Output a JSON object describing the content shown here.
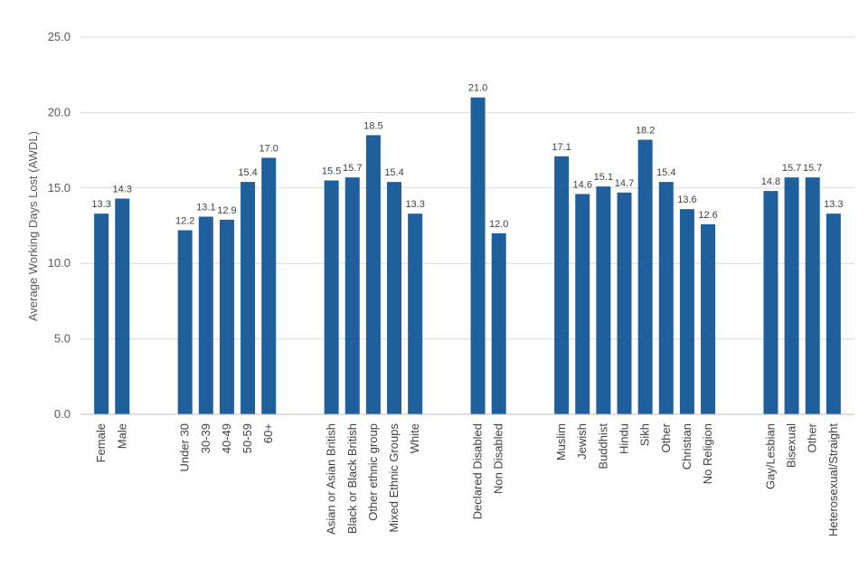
{
  "chart_data": {
    "type": "bar",
    "title": "",
    "xlabel": "",
    "ylabel": "Average Working Days Lost (AWDL)",
    "ylim": [
      0,
      25
    ],
    "yticks": [
      "0.0",
      "5.0",
      "10.0",
      "15.0",
      "20.0",
      "25.0"
    ],
    "grid": true,
    "bar_color": "#1f5f9b",
    "groups": [
      {
        "categories": [
          "Female",
          "Male"
        ],
        "values": [
          13.3,
          14.3
        ],
        "labels": [
          "13.3",
          "14.3"
        ]
      },
      {
        "categories": [
          "Under 30",
          "30-39",
          "40-49",
          "50-59",
          "60+"
        ],
        "values": [
          12.2,
          13.1,
          12.9,
          15.4,
          17.0
        ],
        "labels": [
          "12.2",
          "13.1",
          "12.9",
          "15.4",
          "17.0"
        ]
      },
      {
        "categories": [
          "Asian or Asian British",
          "Black or Black British",
          "Other ethnic group",
          "Mixed Ethnic Groups",
          "White"
        ],
        "values": [
          15.5,
          15.7,
          18.5,
          15.4,
          13.3
        ],
        "labels": [
          "15.5",
          "15.7",
          "18.5",
          "15.4",
          "13.3"
        ]
      },
      {
        "categories": [
          "Declared Disabled",
          "Non Disabled"
        ],
        "values": [
          21.0,
          12.0
        ],
        "labels": [
          "21.0",
          "12.0"
        ]
      },
      {
        "categories": [
          "Muslim",
          "Jewish",
          "Buddhist",
          "Hindu",
          "Sikh",
          "Other",
          "Christian",
          "No Religion"
        ],
        "values": [
          17.1,
          14.6,
          15.1,
          14.7,
          18.2,
          15.4,
          13.6,
          12.6
        ],
        "labels": [
          "17.1",
          "14.6",
          "15.1",
          "14.7",
          "18.2",
          "15.4",
          "13.6",
          "12.6"
        ]
      },
      {
        "categories": [
          "Gay/Lesbian",
          "Bisexual",
          "Other",
          "Heterosexual/Straight"
        ],
        "values": [
          14.8,
          15.7,
          15.7,
          13.3
        ],
        "labels": [
          "14.8",
          "15.7",
          "15.7",
          "13.3"
        ]
      }
    ]
  }
}
